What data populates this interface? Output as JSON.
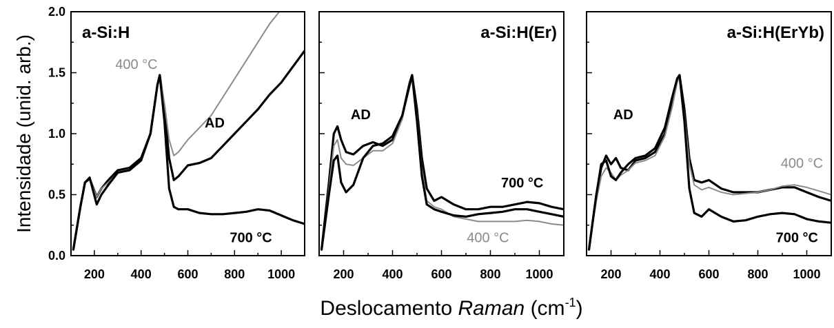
{
  "figure": {
    "ylabel": "Intensidade (unid. arb.)",
    "xlabel_main": "Deslocamento ",
    "xlabel_italic": "Raman",
    "xlabel_unit": " (cm",
    "xlabel_sup": "-1",
    "xlabel_close": ")"
  },
  "chart_data": [
    {
      "type": "line",
      "title": "a-Si:H",
      "xlim": [
        100,
        1100
      ],
      "ylim": [
        0,
        2.0
      ],
      "xticks": [
        200,
        400,
        600,
        800,
        1000
      ],
      "yticks": [
        0.0,
        0.5,
        1.0,
        1.5,
        2.0
      ],
      "series": [
        {
          "name": "AD",
          "color": "#000000",
          "x": [
            110,
            140,
            160,
            180,
            210,
            230,
            260,
            300,
            350,
            400,
            440,
            470,
            480,
            500,
            520,
            540,
            560,
            600,
            650,
            700,
            750,
            800,
            850,
            900,
            950,
            1000,
            1050,
            1100
          ],
          "y": [
            0.05,
            0.4,
            0.6,
            0.63,
            0.48,
            0.55,
            0.62,
            0.7,
            0.72,
            0.8,
            1.0,
            1.4,
            1.48,
            1.2,
            0.8,
            0.62,
            0.65,
            0.74,
            0.76,
            0.8,
            0.9,
            1.0,
            1.1,
            1.2,
            1.32,
            1.42,
            1.55,
            1.68
          ]
        },
        {
          "name": "400 °C",
          "color": "#8a8a8a",
          "x": [
            110,
            140,
            160,
            180,
            210,
            230,
            260,
            300,
            350,
            400,
            440,
            470,
            480,
            500,
            520,
            540,
            560,
            600,
            650,
            700,
            750,
            800,
            850,
            900,
            950,
            1000
          ],
          "y": [
            0.05,
            0.4,
            0.6,
            0.63,
            0.48,
            0.55,
            0.6,
            0.68,
            0.7,
            0.78,
            1.0,
            1.4,
            1.48,
            1.25,
            0.95,
            0.82,
            0.85,
            0.95,
            1.05,
            1.15,
            1.3,
            1.45,
            1.6,
            1.75,
            1.9,
            2.02
          ]
        },
        {
          "name": "700 °C",
          "color": "#000000",
          "x": [
            110,
            140,
            160,
            180,
            210,
            230,
            260,
            300,
            350,
            400,
            440,
            470,
            480,
            500,
            520,
            540,
            560,
            600,
            650,
            700,
            750,
            800,
            850,
            900,
            950,
            1000,
            1050,
            1100
          ],
          "y": [
            0.05,
            0.4,
            0.6,
            0.64,
            0.42,
            0.5,
            0.58,
            0.68,
            0.7,
            0.78,
            1.0,
            1.4,
            1.48,
            1.1,
            0.55,
            0.4,
            0.38,
            0.38,
            0.35,
            0.34,
            0.34,
            0.35,
            0.36,
            0.38,
            0.37,
            0.33,
            0.29,
            0.26
          ]
        }
      ],
      "annotations": [
        {
          "text": "400 °C",
          "x": 380,
          "y": 1.53,
          "color": "#8a8a8a"
        },
        {
          "text": "AD",
          "x": 715,
          "y": 1.05,
          "color": "#000000"
        },
        {
          "text": "700 °C",
          "x": 870,
          "y": 0.11,
          "color": "#000000"
        }
      ]
    },
    {
      "type": "line",
      "title": "a-Si:H(Er)",
      "xlim": [
        100,
        1100
      ],
      "ylim": [
        0,
        2.0
      ],
      "xticks": [
        200,
        400,
        600,
        800,
        1000
      ],
      "yticks": [
        0.0,
        0.5,
        1.0,
        1.5,
        2.0
      ],
      "series": [
        {
          "name": "AD",
          "color": "#000000",
          "x": [
            110,
            140,
            160,
            175,
            190,
            210,
            240,
            280,
            320,
            360,
            400,
            440,
            470,
            480,
            500,
            520,
            540,
            570,
            600,
            650,
            700,
            750,
            800,
            850,
            900,
            950,
            1000,
            1050,
            1100
          ],
          "y": [
            0.05,
            0.6,
            1.0,
            1.06,
            0.95,
            0.85,
            0.83,
            0.9,
            0.93,
            0.9,
            0.95,
            1.15,
            1.42,
            1.48,
            1.2,
            0.8,
            0.55,
            0.45,
            0.48,
            0.42,
            0.38,
            0.38,
            0.4,
            0.4,
            0.42,
            0.44,
            0.43,
            0.4,
            0.38
          ]
        },
        {
          "name": "400 °C",
          "color": "#8a8a8a",
          "x": [
            110,
            140,
            160,
            175,
            190,
            210,
            240,
            280,
            320,
            360,
            400,
            440,
            470,
            480,
            500,
            520,
            540,
            570,
            600,
            650,
            700,
            750,
            800,
            850,
            900,
            950,
            1000,
            1050,
            1100
          ],
          "y": [
            0.05,
            0.55,
            0.9,
            0.95,
            0.8,
            0.75,
            0.74,
            0.8,
            0.86,
            0.86,
            0.92,
            1.12,
            1.42,
            1.48,
            1.15,
            0.7,
            0.45,
            0.4,
            0.38,
            0.32,
            0.3,
            0.28,
            0.28,
            0.28,
            0.28,
            0.29,
            0.28,
            0.26,
            0.25
          ]
        },
        {
          "name": "700 °C",
          "color": "#000000",
          "x": [
            110,
            140,
            160,
            175,
            190,
            210,
            240,
            280,
            320,
            360,
            400,
            440,
            470,
            480,
            500,
            520,
            540,
            570,
            600,
            650,
            700,
            750,
            800,
            850,
            900,
            950,
            1000,
            1050,
            1100
          ],
          "y": [
            0.05,
            0.5,
            0.78,
            0.82,
            0.6,
            0.52,
            0.58,
            0.8,
            0.9,
            0.92,
            0.98,
            1.15,
            1.4,
            1.48,
            1.1,
            0.65,
            0.42,
            0.38,
            0.36,
            0.33,
            0.32,
            0.34,
            0.35,
            0.36,
            0.38,
            0.38,
            0.36,
            0.34,
            0.32
          ]
        }
      ],
      "annotations": [
        {
          "text": "AD",
          "x": 270,
          "y": 1.12,
          "color": "#000000"
        },
        {
          "text": "700 °C",
          "x": 930,
          "y": 0.56,
          "color": "#000000"
        },
        {
          "text": "400 °C",
          "x": 790,
          "y": 0.11,
          "color": "#8a8a8a"
        }
      ]
    },
    {
      "type": "line",
      "title": "a-Si:H(ErYb)",
      "xlim": [
        100,
        1100
      ],
      "ylim": [
        0,
        2.0
      ],
      "xticks": [
        200,
        400,
        600,
        800,
        1000
      ],
      "yticks": [
        0.0,
        0.5,
        1.0,
        1.5,
        2.0
      ],
      "series": [
        {
          "name": "AD",
          "color": "#000000",
          "x": [
            110,
            140,
            160,
            180,
            200,
            220,
            240,
            270,
            300,
            340,
            380,
            420,
            450,
            470,
            480,
            500,
            520,
            540,
            570,
            600,
            650,
            700,
            750,
            800,
            850,
            900,
            950,
            1000,
            1050,
            1100
          ],
          "y": [
            0.05,
            0.5,
            0.72,
            0.82,
            0.75,
            0.8,
            0.72,
            0.7,
            0.78,
            0.8,
            0.85,
            1.0,
            1.25,
            1.45,
            1.48,
            1.2,
            0.8,
            0.62,
            0.6,
            0.62,
            0.55,
            0.52,
            0.52,
            0.52,
            0.54,
            0.56,
            0.56,
            0.52,
            0.48,
            0.45
          ]
        },
        {
          "name": "400 °C",
          "color": "#8a8a8a",
          "x": [
            110,
            140,
            160,
            180,
            200,
            220,
            240,
            270,
            300,
            340,
            380,
            420,
            450,
            470,
            480,
            500,
            520,
            540,
            570,
            600,
            650,
            700,
            750,
            800,
            850,
            900,
            950,
            1000,
            1050,
            1100
          ],
          "y": [
            0.05,
            0.45,
            0.65,
            0.72,
            0.68,
            0.62,
            0.66,
            0.7,
            0.76,
            0.78,
            0.82,
            0.98,
            1.22,
            1.42,
            1.47,
            1.15,
            0.75,
            0.58,
            0.54,
            0.56,
            0.52,
            0.5,
            0.51,
            0.52,
            0.54,
            0.57,
            0.58,
            0.56,
            0.53,
            0.5
          ]
        },
        {
          "name": "700 °C",
          "color": "#000000",
          "x": [
            110,
            140,
            160,
            180,
            200,
            220,
            240,
            270,
            300,
            340,
            380,
            420,
            450,
            470,
            480,
            500,
            520,
            540,
            570,
            600,
            650,
            700,
            750,
            800,
            850,
            900,
            950,
            1000,
            1050,
            1100
          ],
          "y": [
            0.05,
            0.5,
            0.75,
            0.78,
            0.65,
            0.62,
            0.68,
            0.75,
            0.8,
            0.82,
            0.88,
            1.05,
            1.3,
            1.45,
            1.48,
            1.1,
            0.55,
            0.35,
            0.32,
            0.38,
            0.32,
            0.28,
            0.29,
            0.32,
            0.34,
            0.35,
            0.34,
            0.3,
            0.28,
            0.27
          ]
        }
      ],
      "annotations": [
        {
          "text": "AD",
          "x": 250,
          "y": 1.12,
          "color": "#000000"
        },
        {
          "text": "400 °C",
          "x": 980,
          "y": 0.72,
          "color": "#8a8a8a"
        },
        {
          "text": "700 °C",
          "x": 960,
          "y": 0.11,
          "color": "#000000"
        }
      ]
    }
  ]
}
